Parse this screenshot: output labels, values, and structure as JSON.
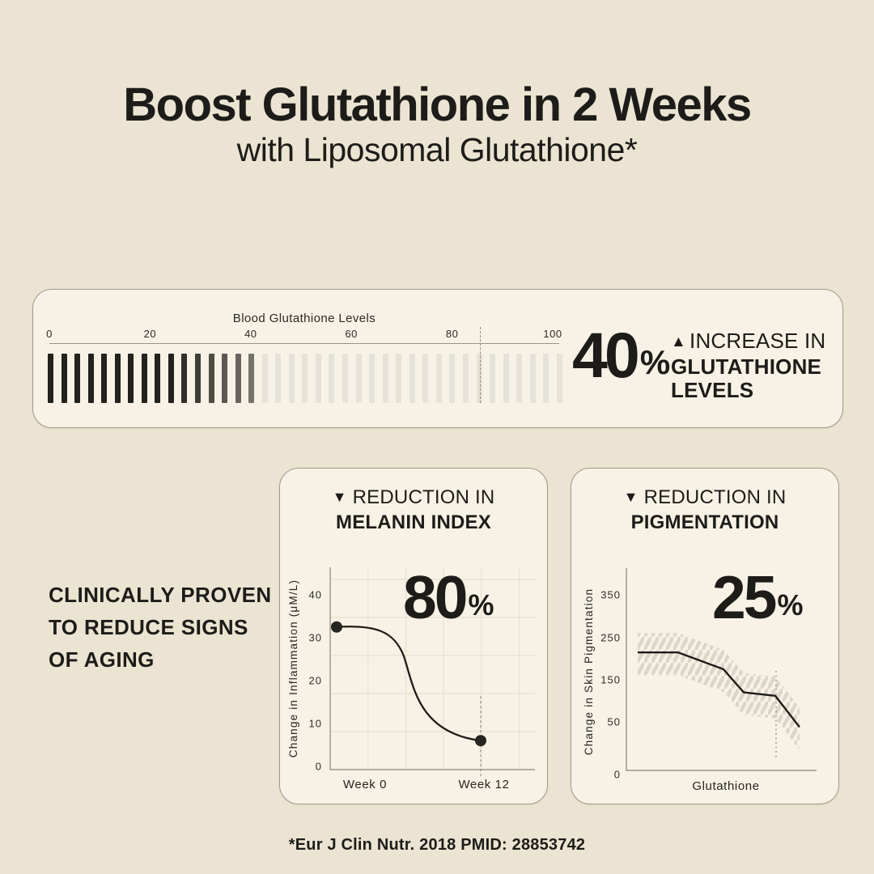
{
  "page": {
    "title": "Boost Glutathione in 2 Weeks",
    "subtitle": "with Liposomal Glutathione*",
    "side_text_lines": [
      "CLINICALLY PROVEN",
      "TO REDUCE SIGNS",
      "OF AGING"
    ],
    "footnote": "*Eur J Clin Nutr. 2018 PMID: 28853742",
    "colors": {
      "background": "#ebe4d2",
      "card": "#f7f2e5",
      "card_border": "#a09a8b",
      "ink": "#1d1c19",
      "bar_dark": "#2b2a25",
      "bar_light": "#e5e2d8",
      "axis_gray": "#8b8577",
      "grid": "#eae3d2",
      "hatch": "#dbd6c8"
    }
  },
  "icons": {
    "increase": "▲",
    "decrease": "▼"
  },
  "gauge_card": {
    "stat": {
      "value": "40",
      "unit": "%",
      "label_lines": [
        "INCREASE IN",
        "GLUTATHIONE",
        "LEVELS"
      ]
    }
  },
  "chart_cards": [
    {
      "header_light": "REDUCTION IN",
      "header_bold": "MELANIN INDEX",
      "stat": {
        "value": "80",
        "unit": "%"
      }
    },
    {
      "header_light": "REDUCTION IN",
      "header_bold": "PIGMENTATION",
      "stat": {
        "value": "25",
        "unit": "%"
      }
    }
  ],
  "chart_data": [
    {
      "type": "bar",
      "title": "Blood Glutathione Levels",
      "axis_ticks": [
        0,
        20,
        40,
        60,
        80,
        100
      ],
      "xlim": [
        0,
        100
      ],
      "total_bars": 39,
      "filled_bars": 16,
      "filled_range": [
        0,
        40
      ],
      "marker_value": 85.5,
      "annotation": "40% increase in glutathione levels"
    },
    {
      "type": "line",
      "ylabel": "Change in Inflammation (μM/L)",
      "yticks": [
        0,
        10,
        20,
        30,
        40
      ],
      "ylim": [
        0,
        44
      ],
      "x_tick_labels": [
        "Week 0",
        "Week 12"
      ],
      "x": [
        0,
        12
      ],
      "values": [
        32.5,
        6
      ],
      "curve": "s-shaped decline",
      "grid": true,
      "marker_at_end": true,
      "annotation": "80% reduction in melanin index"
    },
    {
      "type": "line",
      "ylabel": "Change in Skin Pigmentation",
      "xlabel": "Glutathione",
      "yticks": [
        0,
        50,
        150,
        250,
        350
      ],
      "ylim": [
        0,
        400
      ],
      "x_positions": [
        0,
        0.25,
        0.53,
        0.655,
        0.85,
        1
      ],
      "values": [
        215,
        215,
        175,
        120,
        112,
        45
      ],
      "grid": false,
      "band": "hatched",
      "marker_at_position": 0.855,
      "annotation": "25% reduction in pigmentation"
    }
  ]
}
